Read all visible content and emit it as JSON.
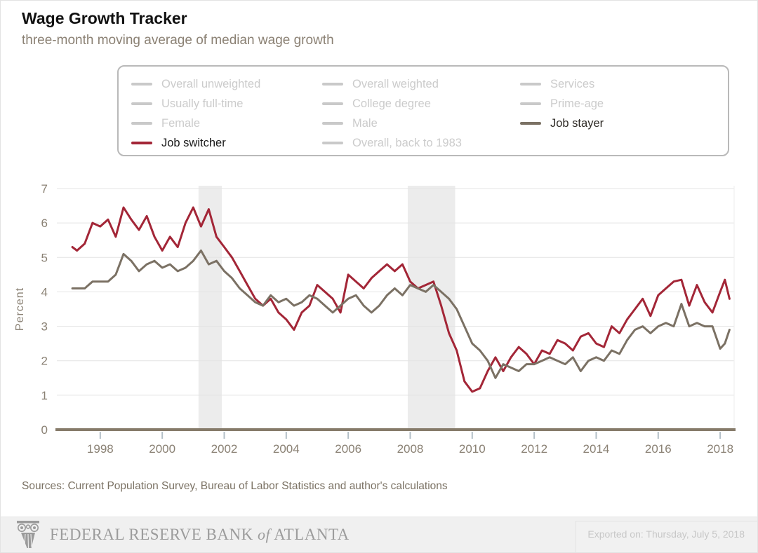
{
  "header": {
    "title": "Wage Growth Tracker",
    "subtitle": "three-month moving average of median wage growth"
  },
  "legend": {
    "columns": [
      [
        {
          "label": "Overall unweighted",
          "active": false,
          "color": "#c9c9c9",
          "text_color": "#cbcbcb"
        },
        {
          "label": "Usually full-time",
          "active": false,
          "color": "#c9c9c9",
          "text_color": "#cbcbcb"
        },
        {
          "label": "Female",
          "active": false,
          "color": "#c9c9c9",
          "text_color": "#cbcbcb"
        },
        {
          "label": "Job switcher",
          "active": true,
          "color": "#a32637",
          "text_color": "#1a1a1a"
        }
      ],
      [
        {
          "label": "Overall weighted",
          "active": false,
          "color": "#c9c9c9",
          "text_color": "#cbcbcb"
        },
        {
          "label": "College degree",
          "active": false,
          "color": "#c9c9c9",
          "text_color": "#cbcbcb"
        },
        {
          "label": "Male",
          "active": false,
          "color": "#c9c9c9",
          "text_color": "#cbcbcb"
        },
        {
          "label": "Overall, back to 1983",
          "active": false,
          "color": "#c9c9c9",
          "text_color": "#cbcbcb"
        }
      ],
      [
        {
          "label": "Services",
          "active": false,
          "color": "#c9c9c9",
          "text_color": "#cbcbcb"
        },
        {
          "label": "Prime-age",
          "active": false,
          "color": "#c9c9c9",
          "text_color": "#cbcbcb"
        },
        {
          "label": "Job stayer",
          "active": true,
          "color": "#7b7164",
          "text_color": "#2e2a25"
        }
      ]
    ]
  },
  "chart_data": {
    "type": "line",
    "title": "Wage Growth Tracker",
    "subtitle": "three-month moving average of median wage growth",
    "xlabel": "",
    "ylabel": "Percent",
    "xlim": [
      1996.6,
      2018.45
    ],
    "ylim": [
      0,
      7
    ],
    "xticks": [
      1998,
      2000,
      2002,
      2004,
      2006,
      2008,
      2010,
      2012,
      2014,
      2016,
      2018
    ],
    "yticks": [
      0,
      1,
      2,
      3,
      4,
      5,
      6,
      7
    ],
    "grid": "horizontal",
    "legend_position": "top",
    "recession_bands": [
      [
        2001.17,
        2001.92
      ],
      [
        2007.92,
        2009.45
      ]
    ],
    "x": [
      1997.1,
      1997.25,
      1997.5,
      1997.75,
      1998.0,
      1998.25,
      1998.5,
      1998.75,
      1999.0,
      1999.25,
      1999.5,
      1999.75,
      2000.0,
      2000.25,
      2000.5,
      2000.75,
      2001.0,
      2001.25,
      2001.5,
      2001.75,
      2002.0,
      2002.25,
      2002.5,
      2002.75,
      2003.0,
      2003.25,
      2003.5,
      2003.75,
      2004.0,
      2004.25,
      2004.5,
      2004.75,
      2005.0,
      2005.25,
      2005.5,
      2005.75,
      2006.0,
      2006.25,
      2006.5,
      2006.75,
      2007.0,
      2007.25,
      2007.5,
      2007.75,
      2008.0,
      2008.25,
      2008.5,
      2008.75,
      2009.0,
      2009.25,
      2009.5,
      2009.75,
      2010.0,
      2010.25,
      2010.5,
      2010.75,
      2011.0,
      2011.25,
      2011.5,
      2011.75,
      2012.0,
      2012.25,
      2012.5,
      2012.75,
      2013.0,
      2013.25,
      2013.5,
      2013.75,
      2014.0,
      2014.25,
      2014.5,
      2014.75,
      2015.0,
      2015.25,
      2015.5,
      2015.75,
      2016.0,
      2016.25,
      2016.5,
      2016.75,
      2017.0,
      2017.25,
      2017.5,
      2017.75,
      2018.0,
      2018.15,
      2018.3
    ],
    "series": [
      {
        "id": "job-switcher",
        "name": "Job switcher",
        "color": "#a32637",
        "values": [
          5.3,
          5.2,
          5.4,
          6.0,
          5.9,
          6.1,
          5.6,
          6.45,
          6.1,
          5.8,
          6.2,
          5.6,
          5.2,
          5.6,
          5.3,
          6.0,
          6.45,
          5.9,
          6.4,
          5.6,
          5.3,
          5.0,
          4.6,
          4.2,
          3.8,
          3.6,
          3.8,
          3.4,
          3.2,
          2.9,
          3.4,
          3.6,
          4.2,
          4.0,
          3.8,
          3.4,
          4.5,
          4.3,
          4.1,
          4.4,
          4.6,
          4.8,
          4.6,
          4.8,
          4.3,
          4.1,
          4.2,
          4.3,
          3.6,
          2.8,
          2.3,
          1.4,
          1.1,
          1.2,
          1.7,
          2.1,
          1.7,
          2.1,
          2.4,
          2.2,
          1.9,
          2.3,
          2.2,
          2.6,
          2.5,
          2.3,
          2.7,
          2.8,
          2.5,
          2.4,
          3.0,
          2.8,
          3.2,
          3.5,
          3.8,
          3.3,
          3.9,
          4.1,
          4.3,
          4.35,
          3.6,
          4.2,
          3.7,
          3.4,
          4.0,
          4.35,
          3.8
        ]
      },
      {
        "id": "job-stayer",
        "name": "Job stayer",
        "color": "#7b7164",
        "values": [
          4.1,
          4.1,
          4.1,
          4.3,
          4.3,
          4.3,
          4.5,
          5.1,
          4.9,
          4.6,
          4.8,
          4.9,
          4.7,
          4.8,
          4.6,
          4.7,
          4.9,
          5.2,
          4.8,
          4.9,
          4.6,
          4.4,
          4.1,
          3.9,
          3.7,
          3.6,
          3.9,
          3.7,
          3.8,
          3.6,
          3.7,
          3.9,
          3.8,
          3.6,
          3.4,
          3.6,
          3.8,
          3.9,
          3.6,
          3.4,
          3.6,
          3.9,
          4.1,
          3.9,
          4.2,
          4.1,
          4.0,
          4.2,
          4.0,
          3.8,
          3.5,
          3.0,
          2.5,
          2.3,
          2.0,
          1.5,
          1.9,
          1.8,
          1.7,
          1.9,
          1.9,
          2.0,
          2.1,
          2.0,
          1.9,
          2.1,
          1.7,
          2.0,
          2.1,
          2.0,
          2.3,
          2.2,
          2.6,
          2.9,
          3.0,
          2.8,
          3.0,
          3.1,
          3.0,
          3.65,
          3.0,
          3.1,
          3.0,
          3.0,
          2.35,
          2.5,
          2.9
        ]
      }
    ]
  },
  "sources": "Sources: Current Population Survey, Bureau of Labor Statistics and author's calculations",
  "footer": {
    "bank_name_part1": "FEDERAL RESERVE BANK",
    "bank_name_of": "of",
    "bank_name_part2": "ATLANTA",
    "exported_on": "Exported on: Thursday, July 5, 2018"
  },
  "colors": {
    "accent_red": "#a32637",
    "accent_brown": "#7b7164",
    "inactive_grey": "#c9c9c9",
    "gridline": "#e4e4e4",
    "recession_band": "#ececec",
    "axis": "#867b6a",
    "tick": "#b3bfc7",
    "axis_text": "#8a8174"
  }
}
